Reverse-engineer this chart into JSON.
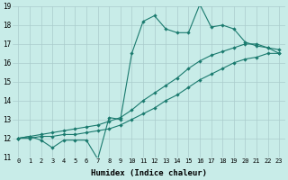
{
  "xlabel": "Humidex (Indice chaleur)",
  "xlim": [
    -0.5,
    23.5
  ],
  "ylim": [
    11,
    19
  ],
  "xticks": [
    0,
    1,
    2,
    3,
    4,
    5,
    6,
    7,
    8,
    9,
    10,
    11,
    12,
    13,
    14,
    15,
    16,
    17,
    18,
    19,
    20,
    21,
    22,
    23
  ],
  "yticks": [
    11,
    12,
    13,
    14,
    15,
    16,
    17,
    18,
    19
  ],
  "bg_color": "#c8ece8",
  "grid_color": "#aacccc",
  "line_color": "#1a7a6e",
  "line1_x": [
    0,
    1,
    2,
    3,
    4,
    5,
    6,
    7,
    8,
    9,
    10,
    11,
    12,
    13,
    14,
    15,
    16,
    17,
    18,
    19,
    20,
    21,
    22,
    23
  ],
  "line1_y": [
    12.0,
    12.1,
    11.9,
    11.5,
    11.9,
    11.9,
    11.9,
    10.9,
    13.1,
    13.0,
    16.5,
    18.2,
    18.5,
    17.8,
    17.6,
    17.6,
    19.1,
    17.9,
    18.0,
    17.8,
    17.1,
    16.9,
    16.8,
    16.5
  ],
  "line2_x": [
    0,
    1,
    2,
    3,
    4,
    5,
    6,
    7,
    8,
    9,
    10,
    11,
    12,
    13,
    14,
    15,
    16,
    17,
    18,
    19,
    20,
    21,
    22,
    23
  ],
  "line2_y": [
    12.0,
    12.1,
    12.2,
    12.3,
    12.4,
    12.5,
    12.6,
    12.7,
    12.9,
    13.1,
    13.5,
    14.0,
    14.4,
    14.8,
    15.2,
    15.7,
    16.1,
    16.4,
    16.6,
    16.8,
    17.0,
    17.0,
    16.8,
    16.7
  ],
  "line3_x": [
    0,
    1,
    2,
    3,
    4,
    5,
    6,
    7,
    8,
    9,
    10,
    11,
    12,
    13,
    14,
    15,
    16,
    17,
    18,
    19,
    20,
    21,
    22,
    23
  ],
  "line3_y": [
    12.0,
    12.0,
    12.1,
    12.1,
    12.2,
    12.2,
    12.3,
    12.4,
    12.5,
    12.7,
    13.0,
    13.3,
    13.6,
    14.0,
    14.3,
    14.7,
    15.1,
    15.4,
    15.7,
    16.0,
    16.2,
    16.3,
    16.5,
    16.5
  ]
}
